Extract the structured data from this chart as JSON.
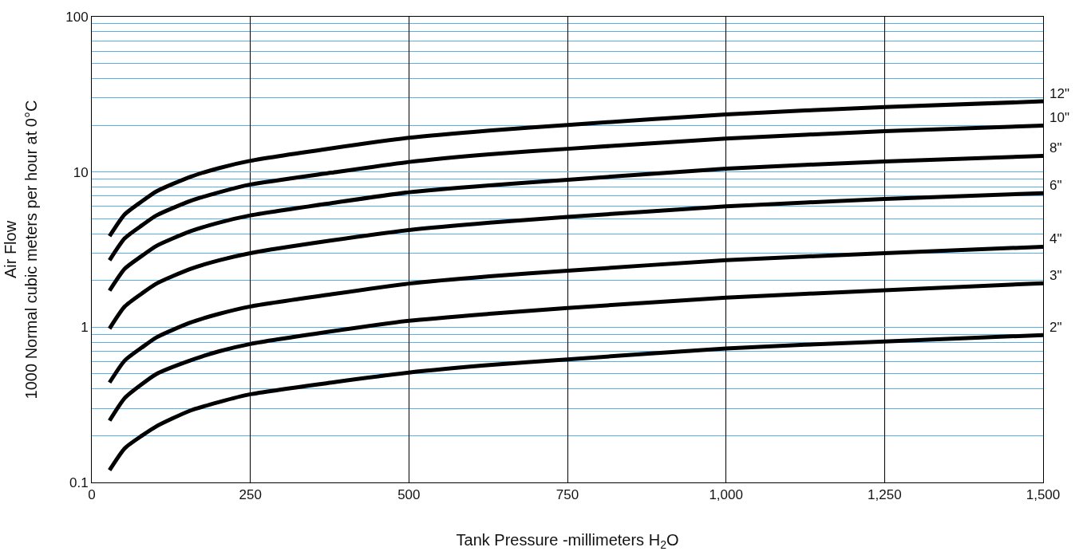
{
  "chart_data": {
    "type": "line",
    "xlabel": "Tank Pressure -millimeters H$_{2}$O",
    "ylabel": "Air Flow\n1000 Normal cubic meters per hour at 0°C",
    "x": [
      28,
      52,
      79,
      102,
      155,
      201,
      250,
      378,
      500,
      627,
      750,
      1000,
      1250,
      1500
    ],
    "series": [
      {
        "name": "12\"",
        "color": "#000000",
        "values": [
          3.86,
          5.34,
          6.47,
          7.5,
          9.3,
          10.6,
          11.8,
          14.2,
          16.6,
          18.5,
          20.1,
          23.5,
          26.2,
          28.5
        ]
      },
      {
        "name": "10\"",
        "color": "#000000",
        "values": [
          2.7,
          3.74,
          4.53,
          5.25,
          6.5,
          7.4,
          8.3,
          9.9,
          11.6,
          13,
          14.1,
          16.4,
          18.3,
          19.9
        ]
      },
      {
        "name": "8\"",
        "color": "#000000",
        "values": [
          1.72,
          2.38,
          2.88,
          3.34,
          4.14,
          4.72,
          5.25,
          6.3,
          7.4,
          8.2,
          8.9,
          10.5,
          11.7,
          12.7
        ]
      },
      {
        "name": "6\"",
        "color": "#000000",
        "values": [
          0.98,
          1.36,
          1.65,
          1.91,
          2.37,
          2.7,
          3.0,
          3.62,
          4.23,
          4.72,
          5.13,
          6.0,
          6.7,
          7.3
        ]
      },
      {
        "name": "4\"",
        "color": "#000000",
        "values": [
          0.44,
          0.61,
          0.74,
          0.86,
          1.07,
          1.22,
          1.36,
          1.63,
          1.91,
          2.13,
          2.31,
          2.7,
          3.0,
          3.3
        ]
      },
      {
        "name": "3\"",
        "color": "#000000",
        "values": [
          0.25,
          0.35,
          0.43,
          0.5,
          0.61,
          0.7,
          0.78,
          0.94,
          1.1,
          1.22,
          1.33,
          1.55,
          1.73,
          1.92
        ]
      },
      {
        "name": "2\"",
        "color": "#000000",
        "values": [
          0.12,
          0.166,
          0.2,
          0.23,
          0.29,
          0.33,
          0.37,
          0.44,
          0.51,
          0.57,
          0.62,
          0.73,
          0.81,
          0.89
        ]
      }
    ],
    "xlim": [
      0,
      1500
    ],
    "xticks": [
      0,
      250,
      500,
      750,
      {
        "value": 1000,
        "label": "1,000"
      },
      {
        "value": 1250,
        "label": "1,250"
      },
      {
        "value": 1500,
        "label": "1,500"
      }
    ],
    "ylim": [
      0.1,
      100
    ],
    "yticks": [
      0.1,
      1,
      10,
      100
    ],
    "log": true,
    "grid": true,
    "legend": false,
    "marker": "none",
    "line_style": "solid"
  }
}
